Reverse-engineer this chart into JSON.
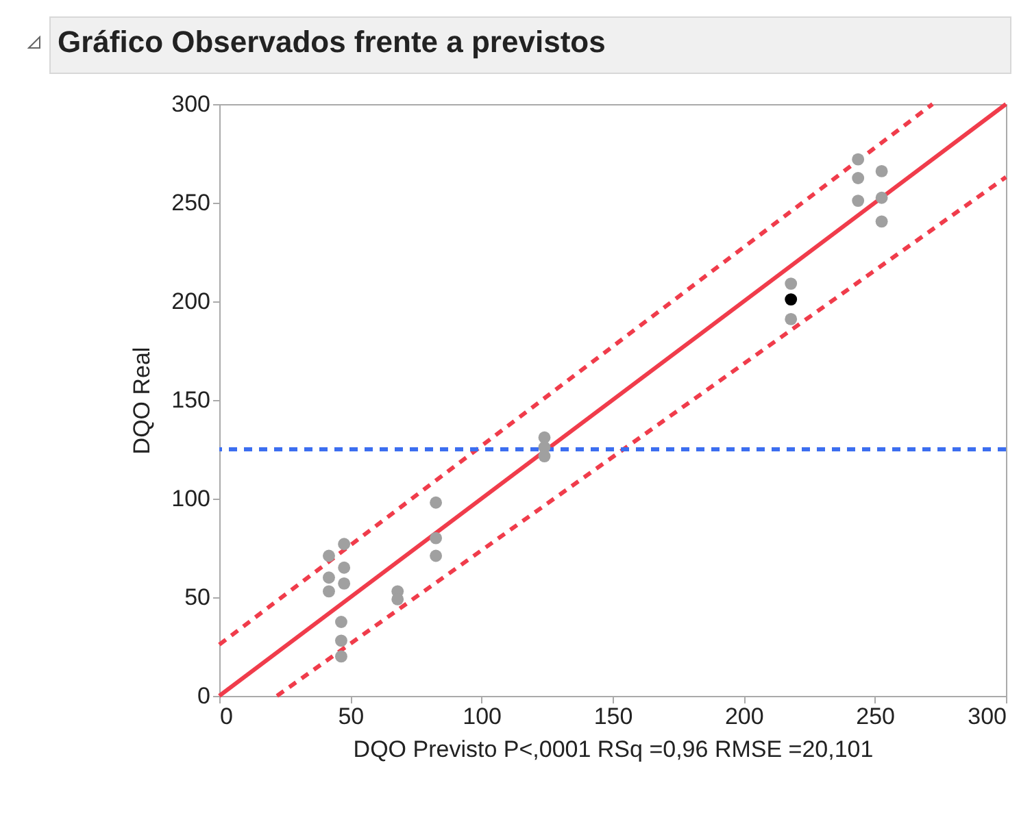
{
  "chart_data": {
    "type": "scatter",
    "title": "Gráfico Observados frente a previstos",
    "xlabel": "DQO Previsto P<,0001 RSq =0,96 RMSE =20,101",
    "ylabel": "DQO Real",
    "xlim": [
      0,
      300
    ],
    "ylim": [
      0,
      300
    ],
    "xticks": [
      0,
      50,
      100,
      150,
      200,
      250,
      300
    ],
    "yticks": [
      0,
      50,
      100,
      150,
      200,
      250,
      300
    ],
    "series": [
      {
        "marker": "circle",
        "x": [
          41.8,
          47.6,
          47.6,
          47.6,
          41.8,
          41.8,
          46.5,
          46.5,
          46.5,
          68,
          68,
          82.6,
          82.6,
          82.6,
          124,
          124,
          124,
          218,
          218,
          218,
          243.6,
          243.6,
          243.6,
          252.6,
          252.6,
          252.6
        ],
        "values": [
          71,
          77,
          65,
          57,
          60,
          53,
          37.5,
          28,
          20,
          53,
          49,
          98,
          80,
          71,
          131,
          126,
          121.5,
          209,
          201,
          191,
          272,
          262.5,
          251,
          266,
          252.5,
          240.5
        ],
        "colors": [
          "#a0a0a0",
          "#a0a0a0",
          "#a0a0a0",
          "#a0a0a0",
          "#a0a0a0",
          "#a0a0a0",
          "#a0a0a0",
          "#a0a0a0",
          "#a0a0a0",
          "#a0a0a0",
          "#a0a0a0",
          "#a0a0a0",
          "#a0a0a0",
          "#a0a0a0",
          "#a0a0a0",
          "#a0a0a0",
          "#a0a0a0",
          "#a0a0a0",
          "#000000",
          "#a0a0a0",
          "#a0a0a0",
          "#a0a0a0",
          "#a0a0a0",
          "#a0a0a0",
          "#a0a0a0",
          "#a0a0a0"
        ]
      },
      {
        "type": "line",
        "color": "#f03c4b",
        "line_style": "solid",
        "x": [
          0,
          300
        ],
        "values": [
          0,
          300
        ]
      },
      {
        "type": "line",
        "color": "#f03c4b",
        "line_style": "dashed",
        "x": [
          0,
          272
        ],
        "values": [
          26,
          300
        ]
      },
      {
        "type": "line",
        "color": "#f03c4b",
        "line_style": "dashed",
        "x": [
          22,
          300
        ],
        "values": [
          0,
          263
        ]
      }
    ],
    "ref_lines": [
      {
        "axis": "y",
        "value": 125,
        "color": "#3c6ef0",
        "line_style": "dashed"
      }
    ]
  }
}
